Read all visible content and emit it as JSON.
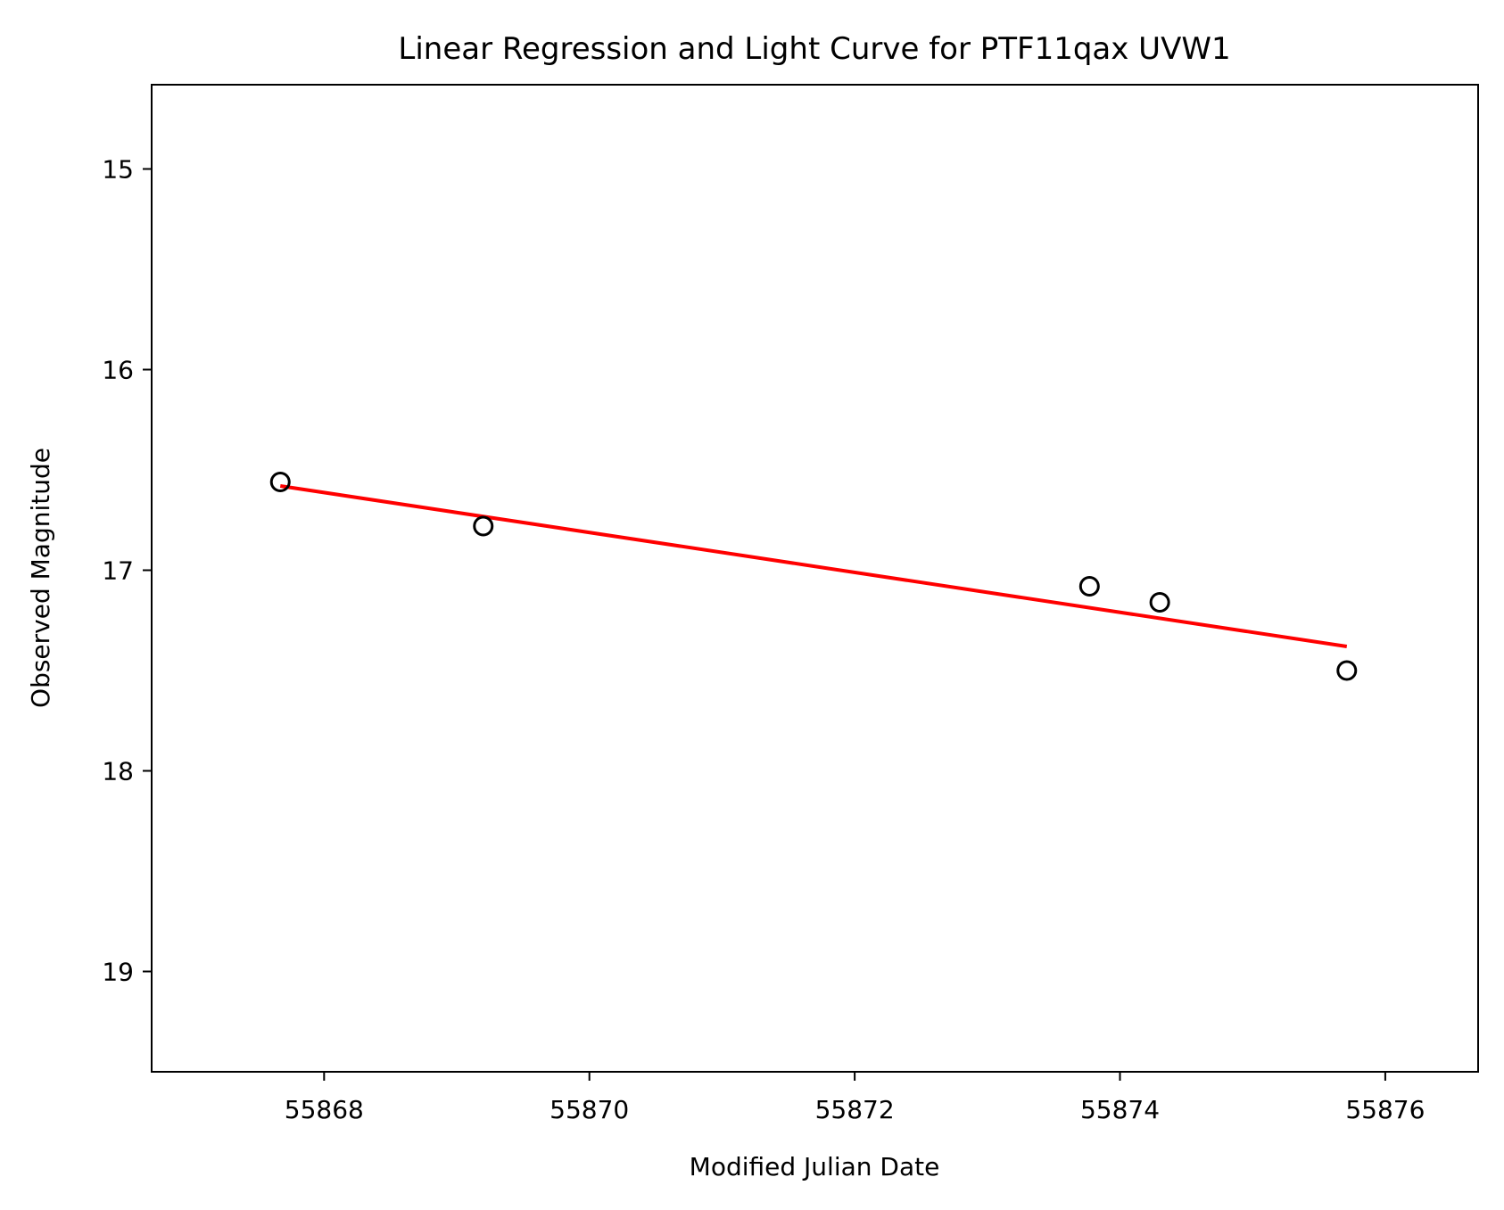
{
  "chart_data": {
    "type": "scatter",
    "title": "Linear Regression and Light Curve for PTF11qax UVW1",
    "xlabel": "Modified Julian Date",
    "ylabel": "Observed Magnitude",
    "xlim": [
      55866.7,
      55876.7
    ],
    "ylim": [
      19.5,
      14.58
    ],
    "y_inverted": true,
    "grid": false,
    "xticks": [
      55868,
      55870,
      55872,
      55874,
      55876
    ],
    "xtick_labels": [
      "55868",
      "55870",
      "55872",
      "55874",
      "55876"
    ],
    "yticks": [
      15,
      16,
      17,
      18,
      19
    ],
    "ytick_labels": [
      "15",
      "16",
      "17",
      "18",
      "19"
    ],
    "series": [
      {
        "kind": "points",
        "marker": "open-circle",
        "color": "#000000",
        "x": [
          55867.67,
          55869.2,
          55873.77,
          55874.3,
          55875.71
        ],
        "y": [
          16.56,
          16.78,
          17.08,
          17.16,
          17.5
        ]
      },
      {
        "kind": "fit-line",
        "color": "#ff0000",
        "x": [
          55867.67,
          55875.71
        ],
        "y": [
          16.58,
          17.38
        ]
      }
    ]
  }
}
